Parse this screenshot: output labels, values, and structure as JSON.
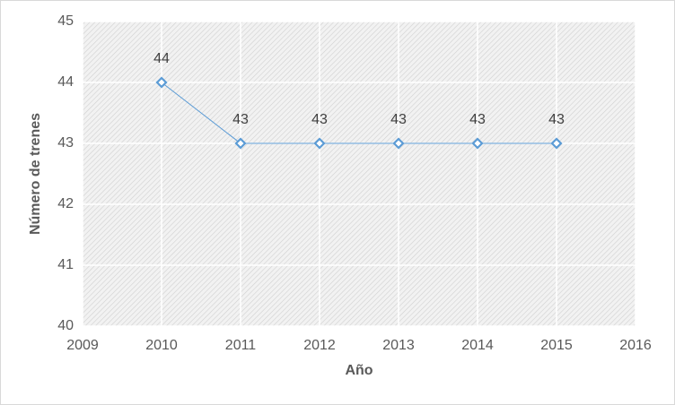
{
  "chart_data": {
    "type": "line",
    "x": [
      2010,
      2011,
      2012,
      2013,
      2014,
      2015
    ],
    "values": [
      44,
      43,
      43,
      43,
      43,
      43
    ],
    "color": "#5b9bd5",
    "xlabel": "Año",
    "ylabel": "Número de trenes",
    "xlim": [
      2009,
      2016
    ],
    "xticks": [
      2009,
      2010,
      2011,
      2012,
      2013,
      2014,
      2015,
      2016
    ],
    "ylim": [
      40,
      45
    ],
    "yticks": [
      40,
      41,
      42,
      43,
      44,
      45
    ],
    "grid": true
  }
}
